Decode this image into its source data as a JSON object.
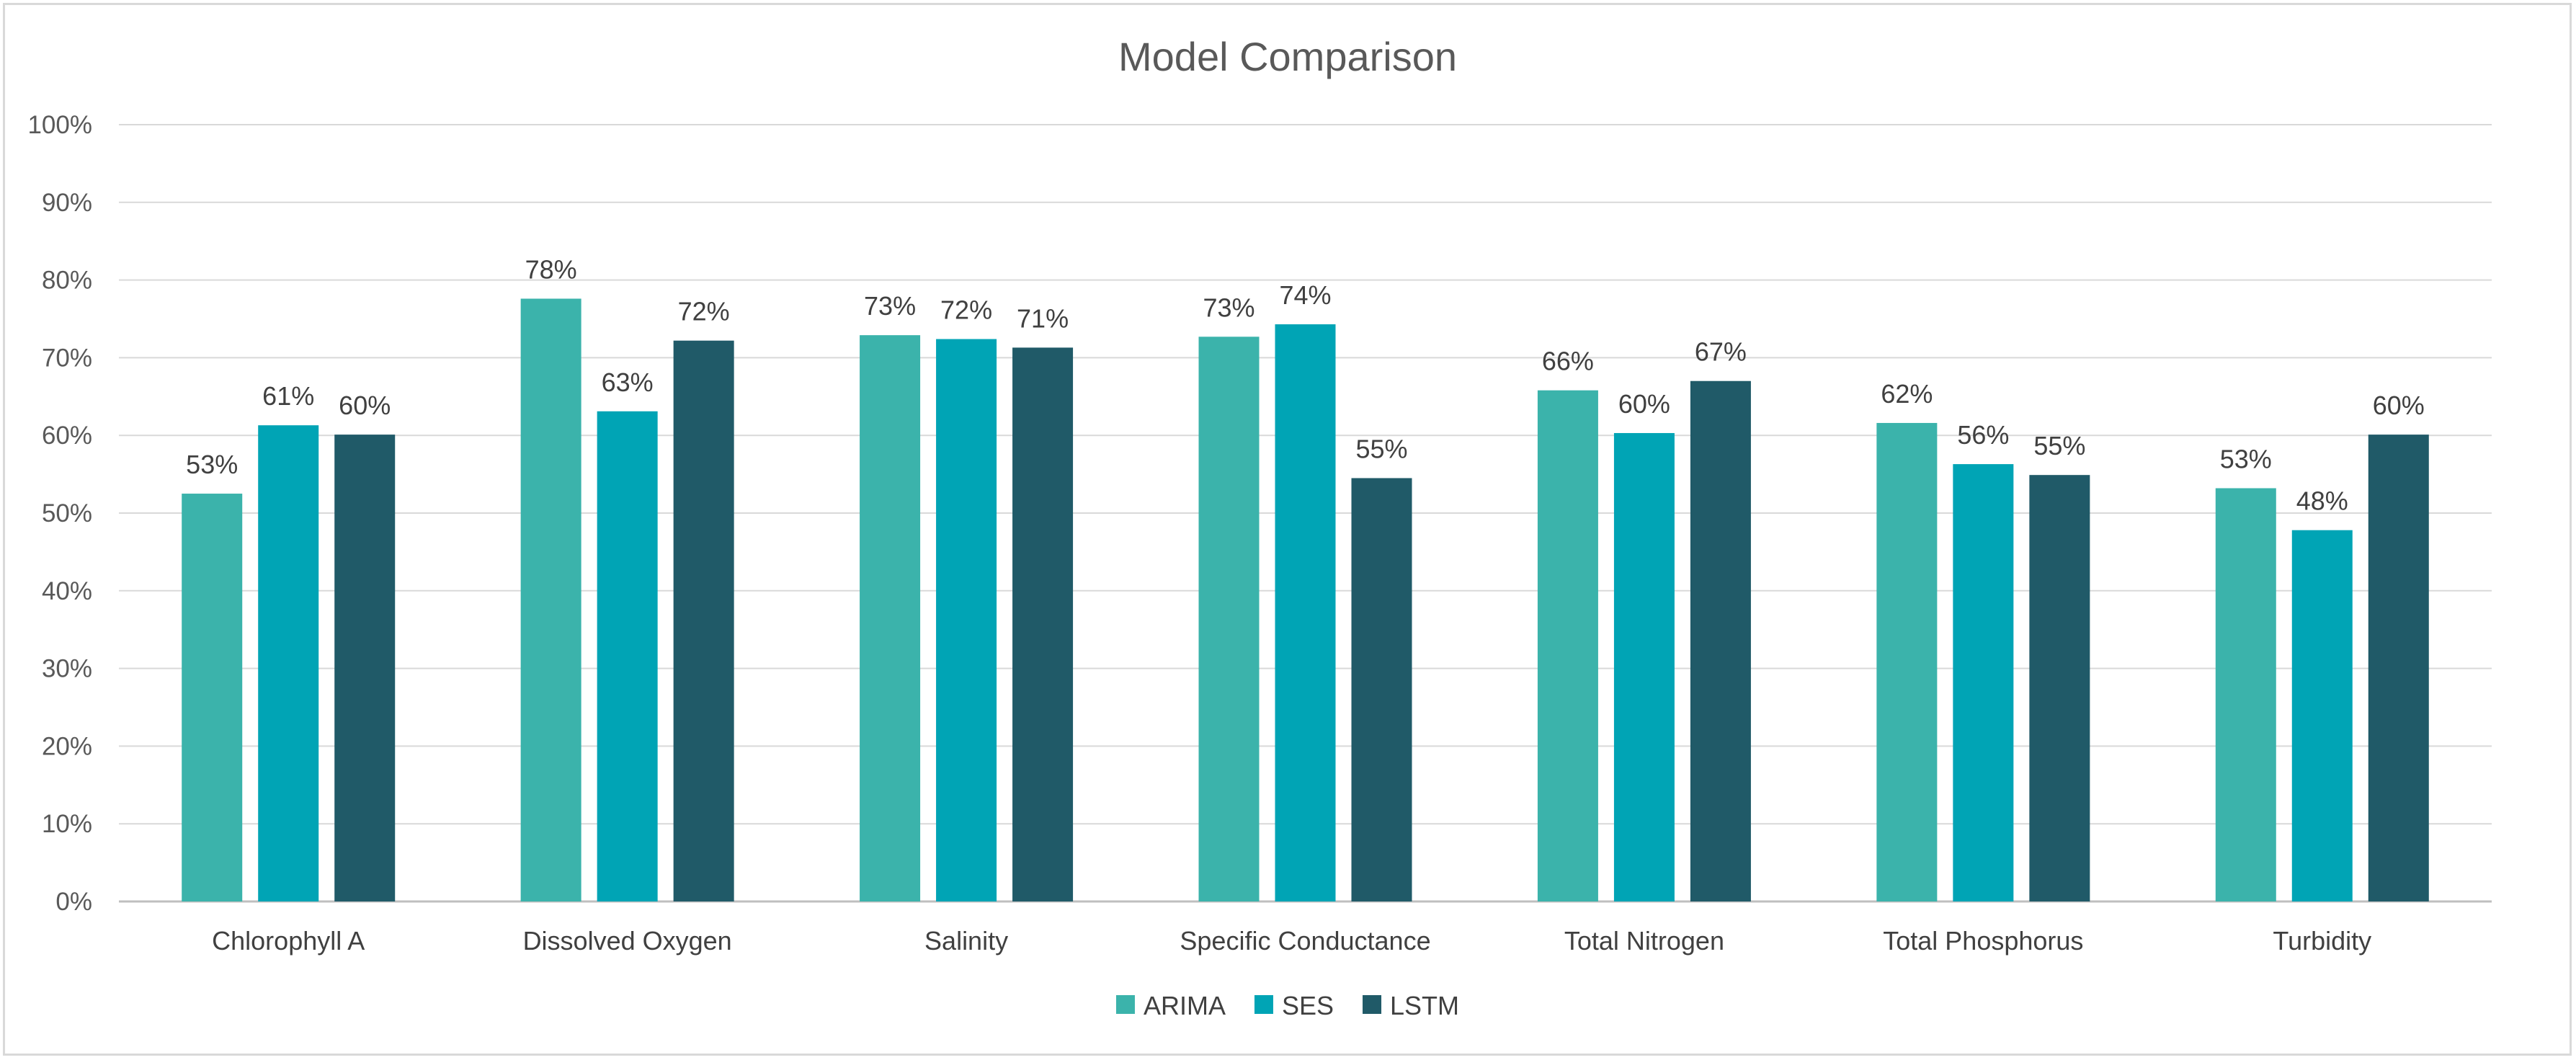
{
  "chart_data": {
    "type": "bar",
    "title": "Model Comparison",
    "xlabel": "",
    "ylabel": "",
    "ylim": [
      0,
      100
    ],
    "y_ticks": [
      "0%",
      "10%",
      "20%",
      "30%",
      "40%",
      "50%",
      "60%",
      "70%",
      "80%",
      "90%",
      "100%"
    ],
    "y_unit": "%",
    "grid": true,
    "legend_position": "bottom",
    "categories": [
      "Chlorophyll A",
      "Dissolved Oxygen",
      "Salinity",
      "Specific Conductance",
      "Total Nitrogen",
      "Total Phosphorus",
      "Turbidity"
    ],
    "series": [
      {
        "name": "ARIMA",
        "color": "#3bb3ab",
        "values": [
          52.5,
          77.6,
          72.9,
          72.7,
          65.8,
          61.6,
          53.2
        ],
        "labels": [
          "53%",
          "78%",
          "73%",
          "73%",
          "66%",
          "62%",
          "53%"
        ]
      },
      {
        "name": "SES",
        "color": "#00a4b5",
        "values": [
          61.3,
          63.1,
          72.4,
          74.3,
          60.3,
          56.3,
          47.8
        ],
        "labels": [
          "61%",
          "63%",
          "72%",
          "74%",
          "60%",
          "56%",
          "48%"
        ]
      },
      {
        "name": "LSTM",
        "color": "#205a68",
        "values": [
          60.1,
          72.2,
          71.3,
          54.5,
          67.0,
          54.9,
          60.1
        ],
        "labels": [
          "60%",
          "72%",
          "71%",
          "55%",
          "67%",
          "55%",
          "60%"
        ]
      }
    ],
    "colors": {
      "gridline": "#d9d9d9",
      "axis": "#bfbfbf",
      "text": "#595959"
    }
  }
}
